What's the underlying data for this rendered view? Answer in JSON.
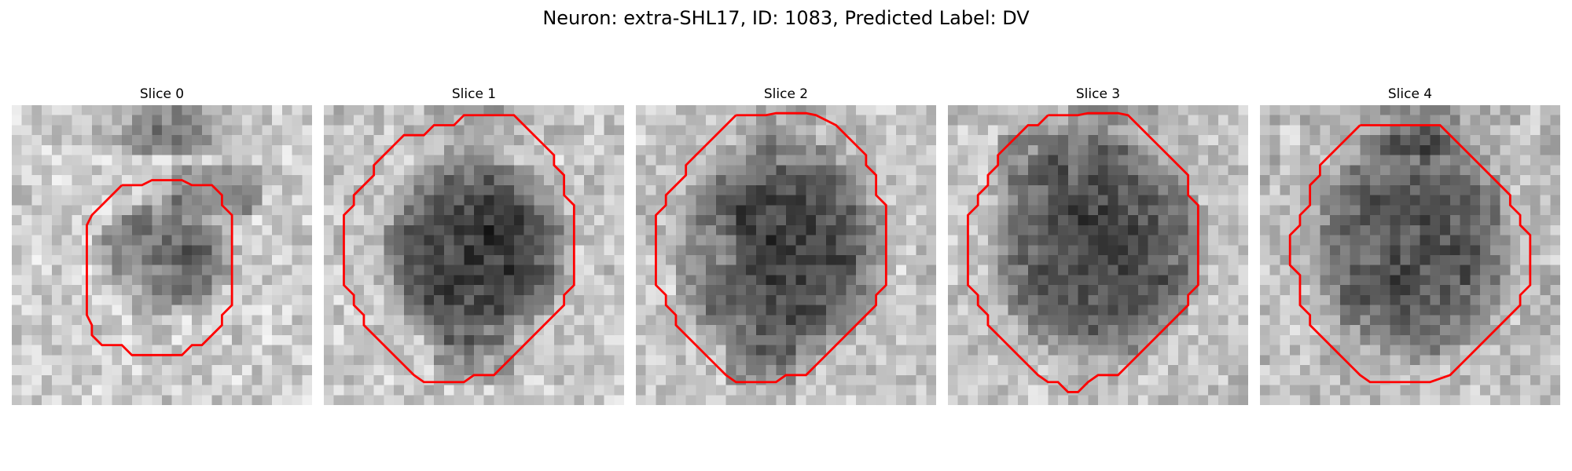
{
  "figure": {
    "suptitle": "Neuron: extra-SHL17, ID: 1083, Predicted Label: DV",
    "colors": {
      "background": "#ffffff",
      "contour": "#ff0000",
      "text": "#000000"
    },
    "image_style": "grayscale 30x30 pixelated crop with red segmentation contour"
  },
  "panels": [
    {
      "title": "Slice 0",
      "contour": "red-segmentation-contour"
    },
    {
      "title": "Slice 1",
      "contour": "red-segmentation-contour"
    },
    {
      "title": "Slice 2",
      "contour": "red-segmentation-contour"
    },
    {
      "title": "Slice 3",
      "contour": "red-segmentation-contour"
    },
    {
      "title": "Slice 4",
      "contour": "red-segmentation-contour"
    }
  ]
}
